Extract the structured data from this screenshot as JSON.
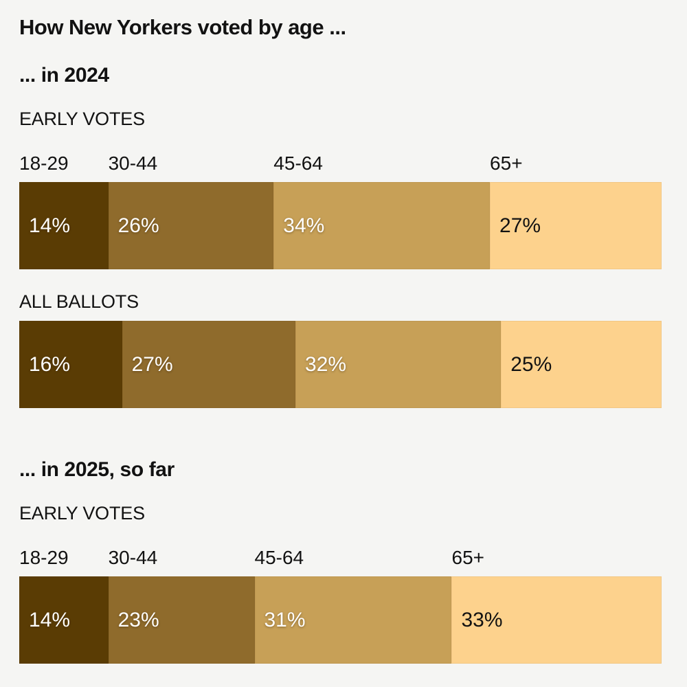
{
  "chart_data": {
    "type": "bar",
    "title": "How New Yorkers voted by age ...",
    "categories": [
      "18-29",
      "30-44",
      "45-64",
      "65+"
    ],
    "palette": [
      "#5a3c04",
      "#8f6b2c",
      "#c7a057",
      "#fdd28d"
    ],
    "value_text_colors": [
      "#ffffff",
      "#ffffff",
      "#ffffff",
      "#121212"
    ],
    "value_suffix": "%",
    "background": "#f5f5f3",
    "text_color": "#121212",
    "legend_position": "above-bar-inline-labels",
    "grid": false,
    "sections": [
      {
        "heading": "... in 2024",
        "rows": [
          {
            "label": "EARLY VOTES",
            "show_categories": true,
            "values": [
              14,
              26,
              34,
              27
            ]
          },
          {
            "label": "ALL BALLOTS",
            "show_categories": false,
            "values": [
              16,
              27,
              32,
              25
            ]
          }
        ]
      },
      {
        "heading": "... in 2025, so far",
        "rows": [
          {
            "label": "EARLY VOTES",
            "show_categories": true,
            "values": [
              14,
              23,
              31,
              33
            ]
          }
        ]
      }
    ]
  }
}
